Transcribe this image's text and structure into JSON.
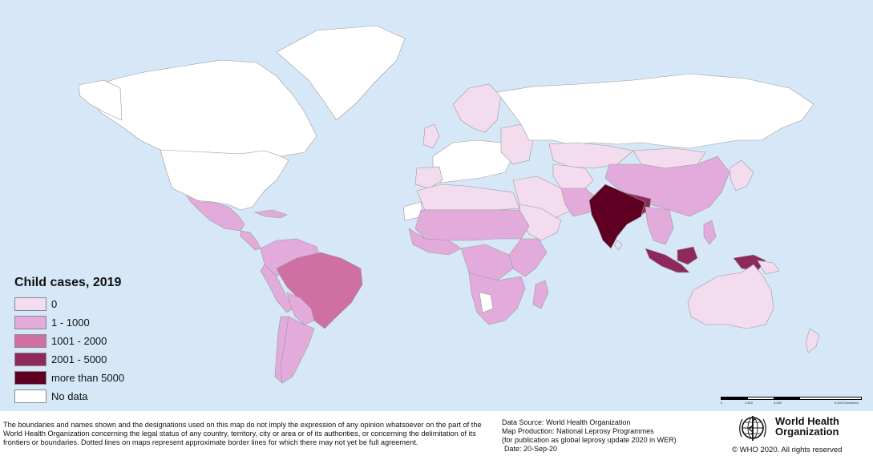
{
  "legend": {
    "title": "Child cases, 2019",
    "items": [
      {
        "label": "0",
        "color": "#f2dcee"
      },
      {
        "label": "1 - 1000",
        "color": "#e3abdc"
      },
      {
        "label": "1001 - 2000",
        "color": "#cf6fa3"
      },
      {
        "label": "2001 - 5000",
        "color": "#8e2a5b"
      },
      {
        "label": "more than 5000",
        "color": "#5f0023"
      },
      {
        "label": "No data",
        "color": "#ffffff"
      }
    ]
  },
  "scale": {
    "ticks": [
      "0",
      "1,500",
      "3,000",
      "6,000 Kilometers"
    ]
  },
  "disclaimer": "The boundaries and names shown and the designations used on this map do not imply the expression of any opinion whatsoever on the part of the World Health Organization concerning the legal status of any country, territory, city or area or of its authorities, or concerning the delimitation of its frontiers or boundaries.  Dotted lines on maps represent approximate border lines for which there may not yet be full agreement.",
  "source": {
    "data_source": "Data Source: World Health Organization",
    "production": "Map Production: National Leprosy Programmes",
    "publication": "(for publication as global leprosy update 2020 in WER)",
    "date": "Date: 20-Sep-20"
  },
  "org": {
    "name_line1": "World Health",
    "name_line2": "Organization",
    "copyright": "© WHO 2020. All rights reserved"
  }
}
